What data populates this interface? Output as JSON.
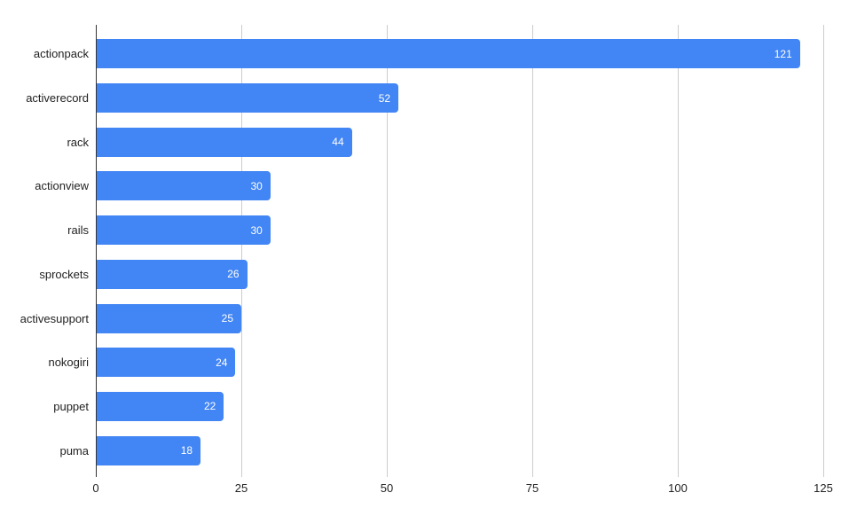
{
  "chart_data": {
    "type": "bar",
    "orientation": "horizontal",
    "title": "",
    "xlabel": "",
    "ylabel": "",
    "categories": [
      "actionpack",
      "activerecord",
      "rack",
      "actionview",
      "rails",
      "sprockets",
      "activesupport",
      "nokogiri",
      "puppet",
      "puma"
    ],
    "values": [
      121,
      52,
      44,
      30,
      30,
      26,
      25,
      24,
      22,
      18
    ],
    "xlim": [
      0,
      125
    ],
    "x_ticks": [
      0,
      25,
      50,
      75,
      100,
      125
    ],
    "grid": true,
    "legend_position": "none",
    "colors": {
      "bar": "#4285f4",
      "value_label": "#ffffff",
      "axis_text": "#222222",
      "gridline": "#cccccc",
      "axis_line": "#333333",
      "background": "#ffffff"
    }
  }
}
